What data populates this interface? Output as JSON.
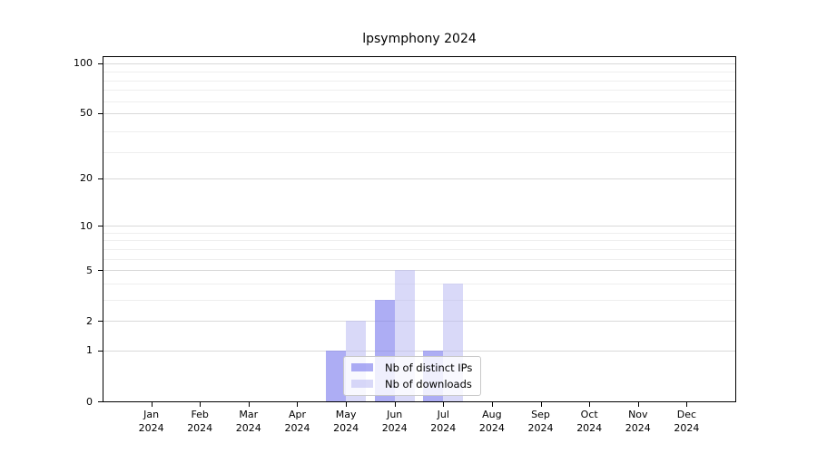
{
  "chart_data": {
    "type": "bar",
    "title": "lpsymphony 2024",
    "x_categories": [
      "Jan",
      "Feb",
      "Mar",
      "Apr",
      "May",
      "Jun",
      "Jul",
      "Aug",
      "Sep",
      "Oct",
      "Nov",
      "Dec"
    ],
    "x_year_label": "2024",
    "y_scale": "log1p",
    "y_ticks": [
      0,
      1,
      2,
      5,
      10,
      20,
      50,
      100
    ],
    "y_range": [
      0,
      110
    ],
    "grid": "horizontal log-spaced lines",
    "legend_position": "lower center inside plot",
    "series": [
      {
        "name": "Nb of distinct IPs",
        "fill": "rgba(122,122,238,0.62)",
        "solid_hex": "#adadf4",
        "values": [
          0,
          0,
          0,
          0,
          1,
          3,
          1,
          0,
          0,
          0,
          0,
          0
        ]
      },
      {
        "name": "Nb of downloads",
        "fill": "rgba(186,186,242,0.55)",
        "solid_hex": "#d9d9f8",
        "values": [
          0,
          0,
          0,
          0,
          2,
          5,
          4,
          0,
          0,
          0,
          0,
          0
        ]
      }
    ]
  },
  "colors": {
    "background": "#ffffff",
    "spine": "#000000",
    "grid_major": "#d9d9d9",
    "grid_minor": "#eeeeee",
    "legend_border": "#c9c9c9",
    "text": "#000000"
  }
}
